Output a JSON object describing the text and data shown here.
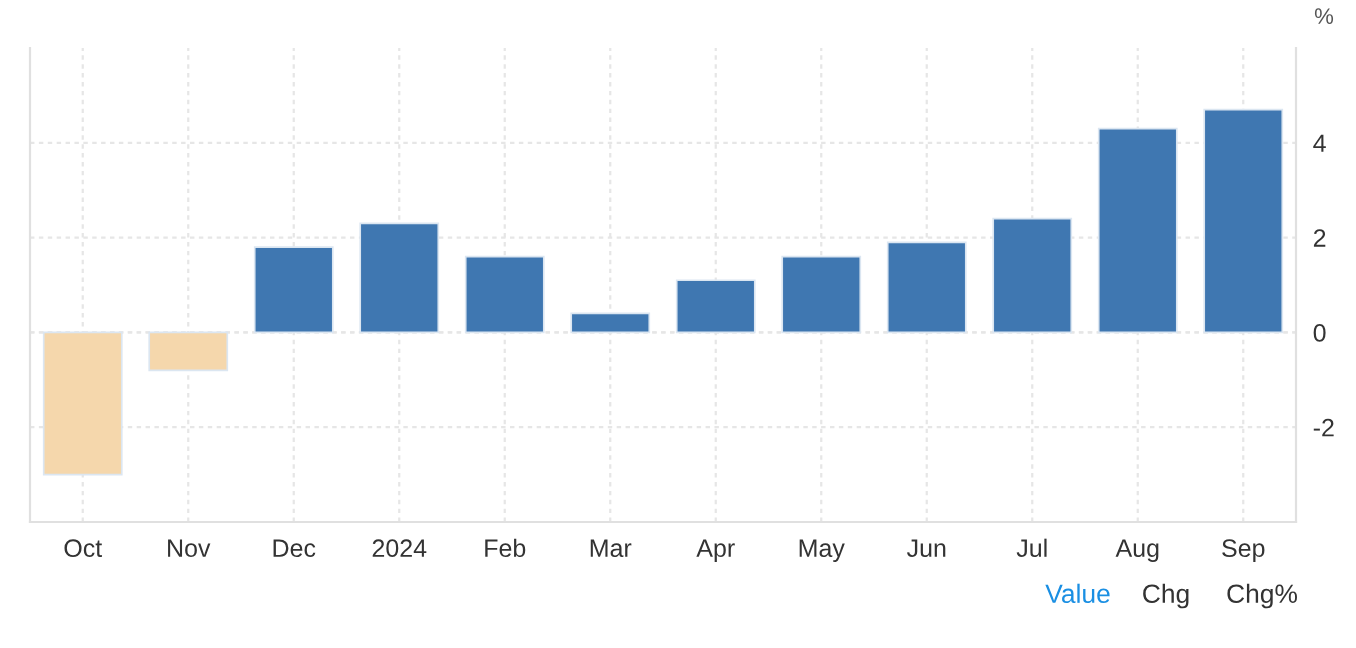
{
  "chart_data": {
    "type": "bar",
    "ylabel": "%",
    "categories": [
      "Oct",
      "Nov",
      "Dec",
      "2024",
      "Feb",
      "Mar",
      "Apr",
      "May",
      "Jun",
      "Jul",
      "Aug",
      "Sep"
    ],
    "values": [
      -3.0,
      -0.8,
      1.8,
      2.3,
      1.6,
      0.4,
      1.1,
      1.6,
      1.9,
      2.4,
      4.3,
      4.7
    ],
    "colors": [
      "#f5d7ac",
      "#f5d7ac",
      "#3f77b1",
      "#3f77b1",
      "#3f77b1",
      "#3f77b1",
      "#3f77b1",
      "#3f77b1",
      "#3f77b1",
      "#3f77b1",
      "#3f77b1",
      "#3f77b1"
    ],
    "ylim": [
      -4,
      6
    ],
    "yticks": [
      -2,
      0,
      2,
      4
    ],
    "grid": true,
    "legend": false,
    "annotations": [
      "Value",
      "Chg",
      "Chg%"
    ]
  }
}
